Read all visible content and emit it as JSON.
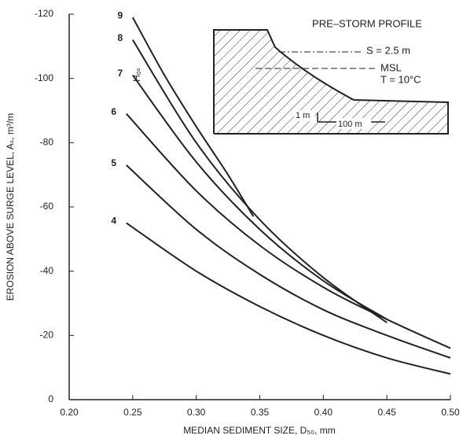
{
  "chart_data": {
    "type": "line",
    "xlabel": "MEDIAN SEDIMENT SIZE, D₅₀, mm",
    "ylabel": "EROSION ABOVE SURGE LEVEL, Aₛ, m³/m",
    "legend_title": "Hₒₛ",
    "xlim": [
      0.2,
      0.5
    ],
    "ylim": [
      0,
      -120
    ],
    "xticks": [
      {
        "value": 0.2,
        "label": "0.20"
      },
      0.25,
      {
        "value": 0.3,
        "label": "0.30"
      },
      0.35,
      {
        "value": 0.4,
        "label": "0.40"
      },
      0.45,
      {
        "value": 0.5,
        "label": "0.50"
      }
    ],
    "yticks": [
      0,
      -20,
      -40,
      -60,
      -80,
      -100,
      -120
    ],
    "series": [
      {
        "name": "9",
        "color": "#222",
        "x": [
          0.25,
          0.275,
          0.3,
          0.325,
          0.345
        ],
        "values": [
          -119,
          -101,
          -85,
          -70,
          -57
        ]
      },
      {
        "name": "8",
        "color": "#222",
        "x": [
          0.25,
          0.3,
          0.35,
          0.4,
          0.45
        ],
        "values": [
          -112,
          -80,
          -56,
          -38,
          -24
        ]
      },
      {
        "name": "7",
        "color": "#222",
        "x": [
          0.25,
          0.3,
          0.35,
          0.4,
          0.45
        ],
        "values": [
          -101,
          -74,
          -53,
          -37,
          -25
        ]
      },
      {
        "name": "6",
        "color": "#222",
        "x": [
          0.245,
          0.3,
          0.35,
          0.4,
          0.45,
          0.5
        ],
        "values": [
          -89,
          -65,
          -48,
          -35,
          -25,
          -16
        ]
      },
      {
        "name": "5",
        "color": "#222",
        "x": [
          0.245,
          0.3,
          0.35,
          0.4,
          0.45,
          0.5
        ],
        "values": [
          -73,
          -53,
          -39,
          -28,
          -20,
          -13
        ]
      },
      {
        "name": "4",
        "color": "#222",
        "x": [
          0.245,
          0.3,
          0.35,
          0.4,
          0.45,
          0.5
        ],
        "values": [
          -55,
          -40,
          -29,
          -20,
          -13,
          -8
        ]
      }
    ]
  },
  "inset": {
    "title": "PRE–STORM PROFILE",
    "surge": "S = 2.5 m",
    "msl": "MSL",
    "temperature": "T = 10°C",
    "vertical_scale": "1 m",
    "horizontal_scale": "100 m"
  }
}
